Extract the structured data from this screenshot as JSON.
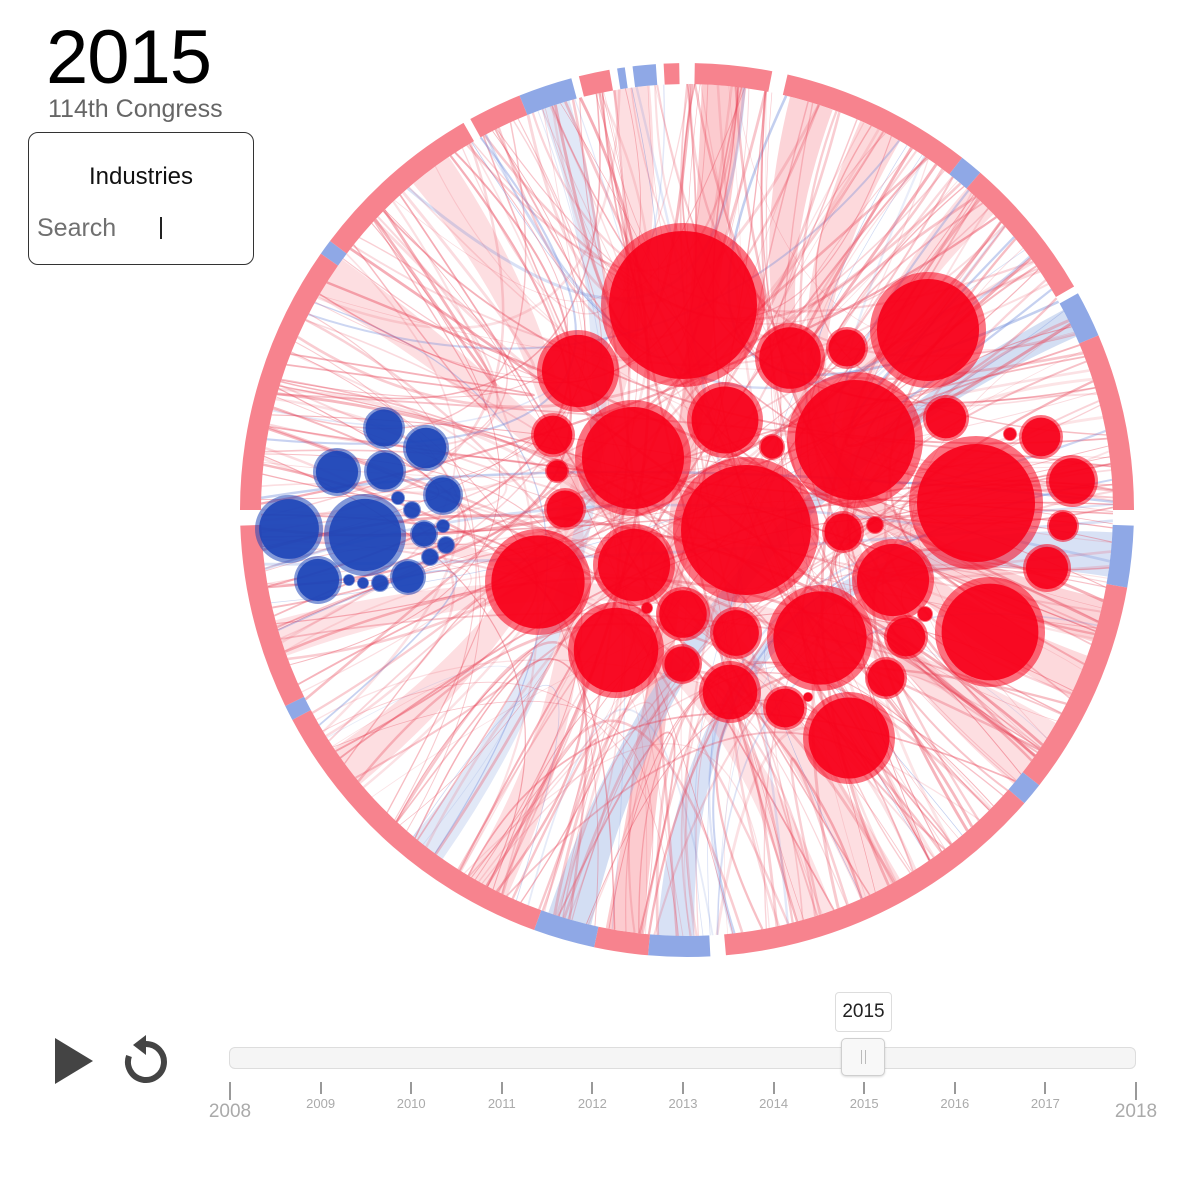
{
  "header": {
    "year": "2015",
    "congress": "114th Congress"
  },
  "filter": {
    "title": "Industries",
    "search_placeholder": "Search",
    "search_value": ""
  },
  "controls": {
    "play_icon": "play-icon",
    "reset_icon": "refresh-icon"
  },
  "slider": {
    "min": 2008,
    "max": 2018,
    "value": 2015,
    "tooltip": "2015",
    "ticks": [
      "2008",
      "2009",
      "2010",
      "2011",
      "2012",
      "2013",
      "2014",
      "2015",
      "2016",
      "2017",
      "2018"
    ]
  },
  "colors": {
    "republican": "#f70019",
    "democrat": "#1d45b8",
    "republican_light": "#f9a0a8",
    "democrat_light": "#a8bde8",
    "ring_republican": "#f7838e",
    "ring_democrat": "#8fa8e6"
  }
}
